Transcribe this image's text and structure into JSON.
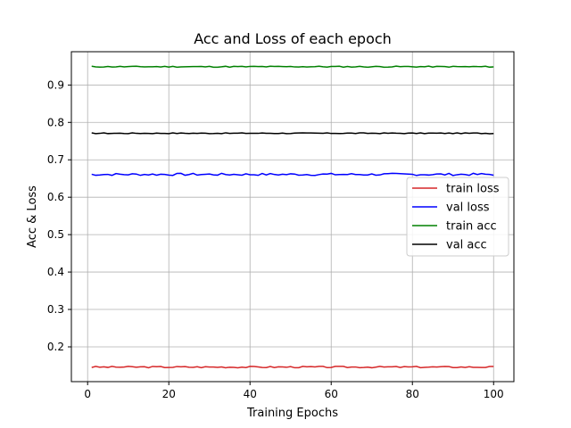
{
  "chart_data": {
    "type": "line",
    "title": "Acc and Loss of each epoch",
    "xlabel": "Training Epochs",
    "ylabel": "Acc & Loss",
    "xlim": [
      -4,
      105
    ],
    "ylim": [
      0.107,
      0.989
    ],
    "x_ticks": [
      0,
      20,
      40,
      60,
      80,
      100
    ],
    "y_ticks": [
      0.2,
      0.3,
      0.4,
      0.5,
      0.6,
      0.7,
      0.8,
      0.9
    ],
    "grid": true,
    "legend_position": "center-right",
    "x": [
      1,
      100
    ],
    "series": [
      {
        "name": "train loss",
        "color": "#d62728",
        "pure_color": "red",
        "mean": 0.146,
        "amplitude": 0.002,
        "seed": 3
      },
      {
        "name": "val loss",
        "color": "#0000ff",
        "mean": 0.661,
        "amplitude": 0.003,
        "seed": 7
      },
      {
        "name": "train acc",
        "color": "#008000",
        "mean": 0.949,
        "amplitude": 0.0015,
        "seed": 11
      },
      {
        "name": "val acc",
        "color": "#000000",
        "mean": 0.771,
        "amplitude": 0.0012,
        "seed": 17
      }
    ]
  }
}
